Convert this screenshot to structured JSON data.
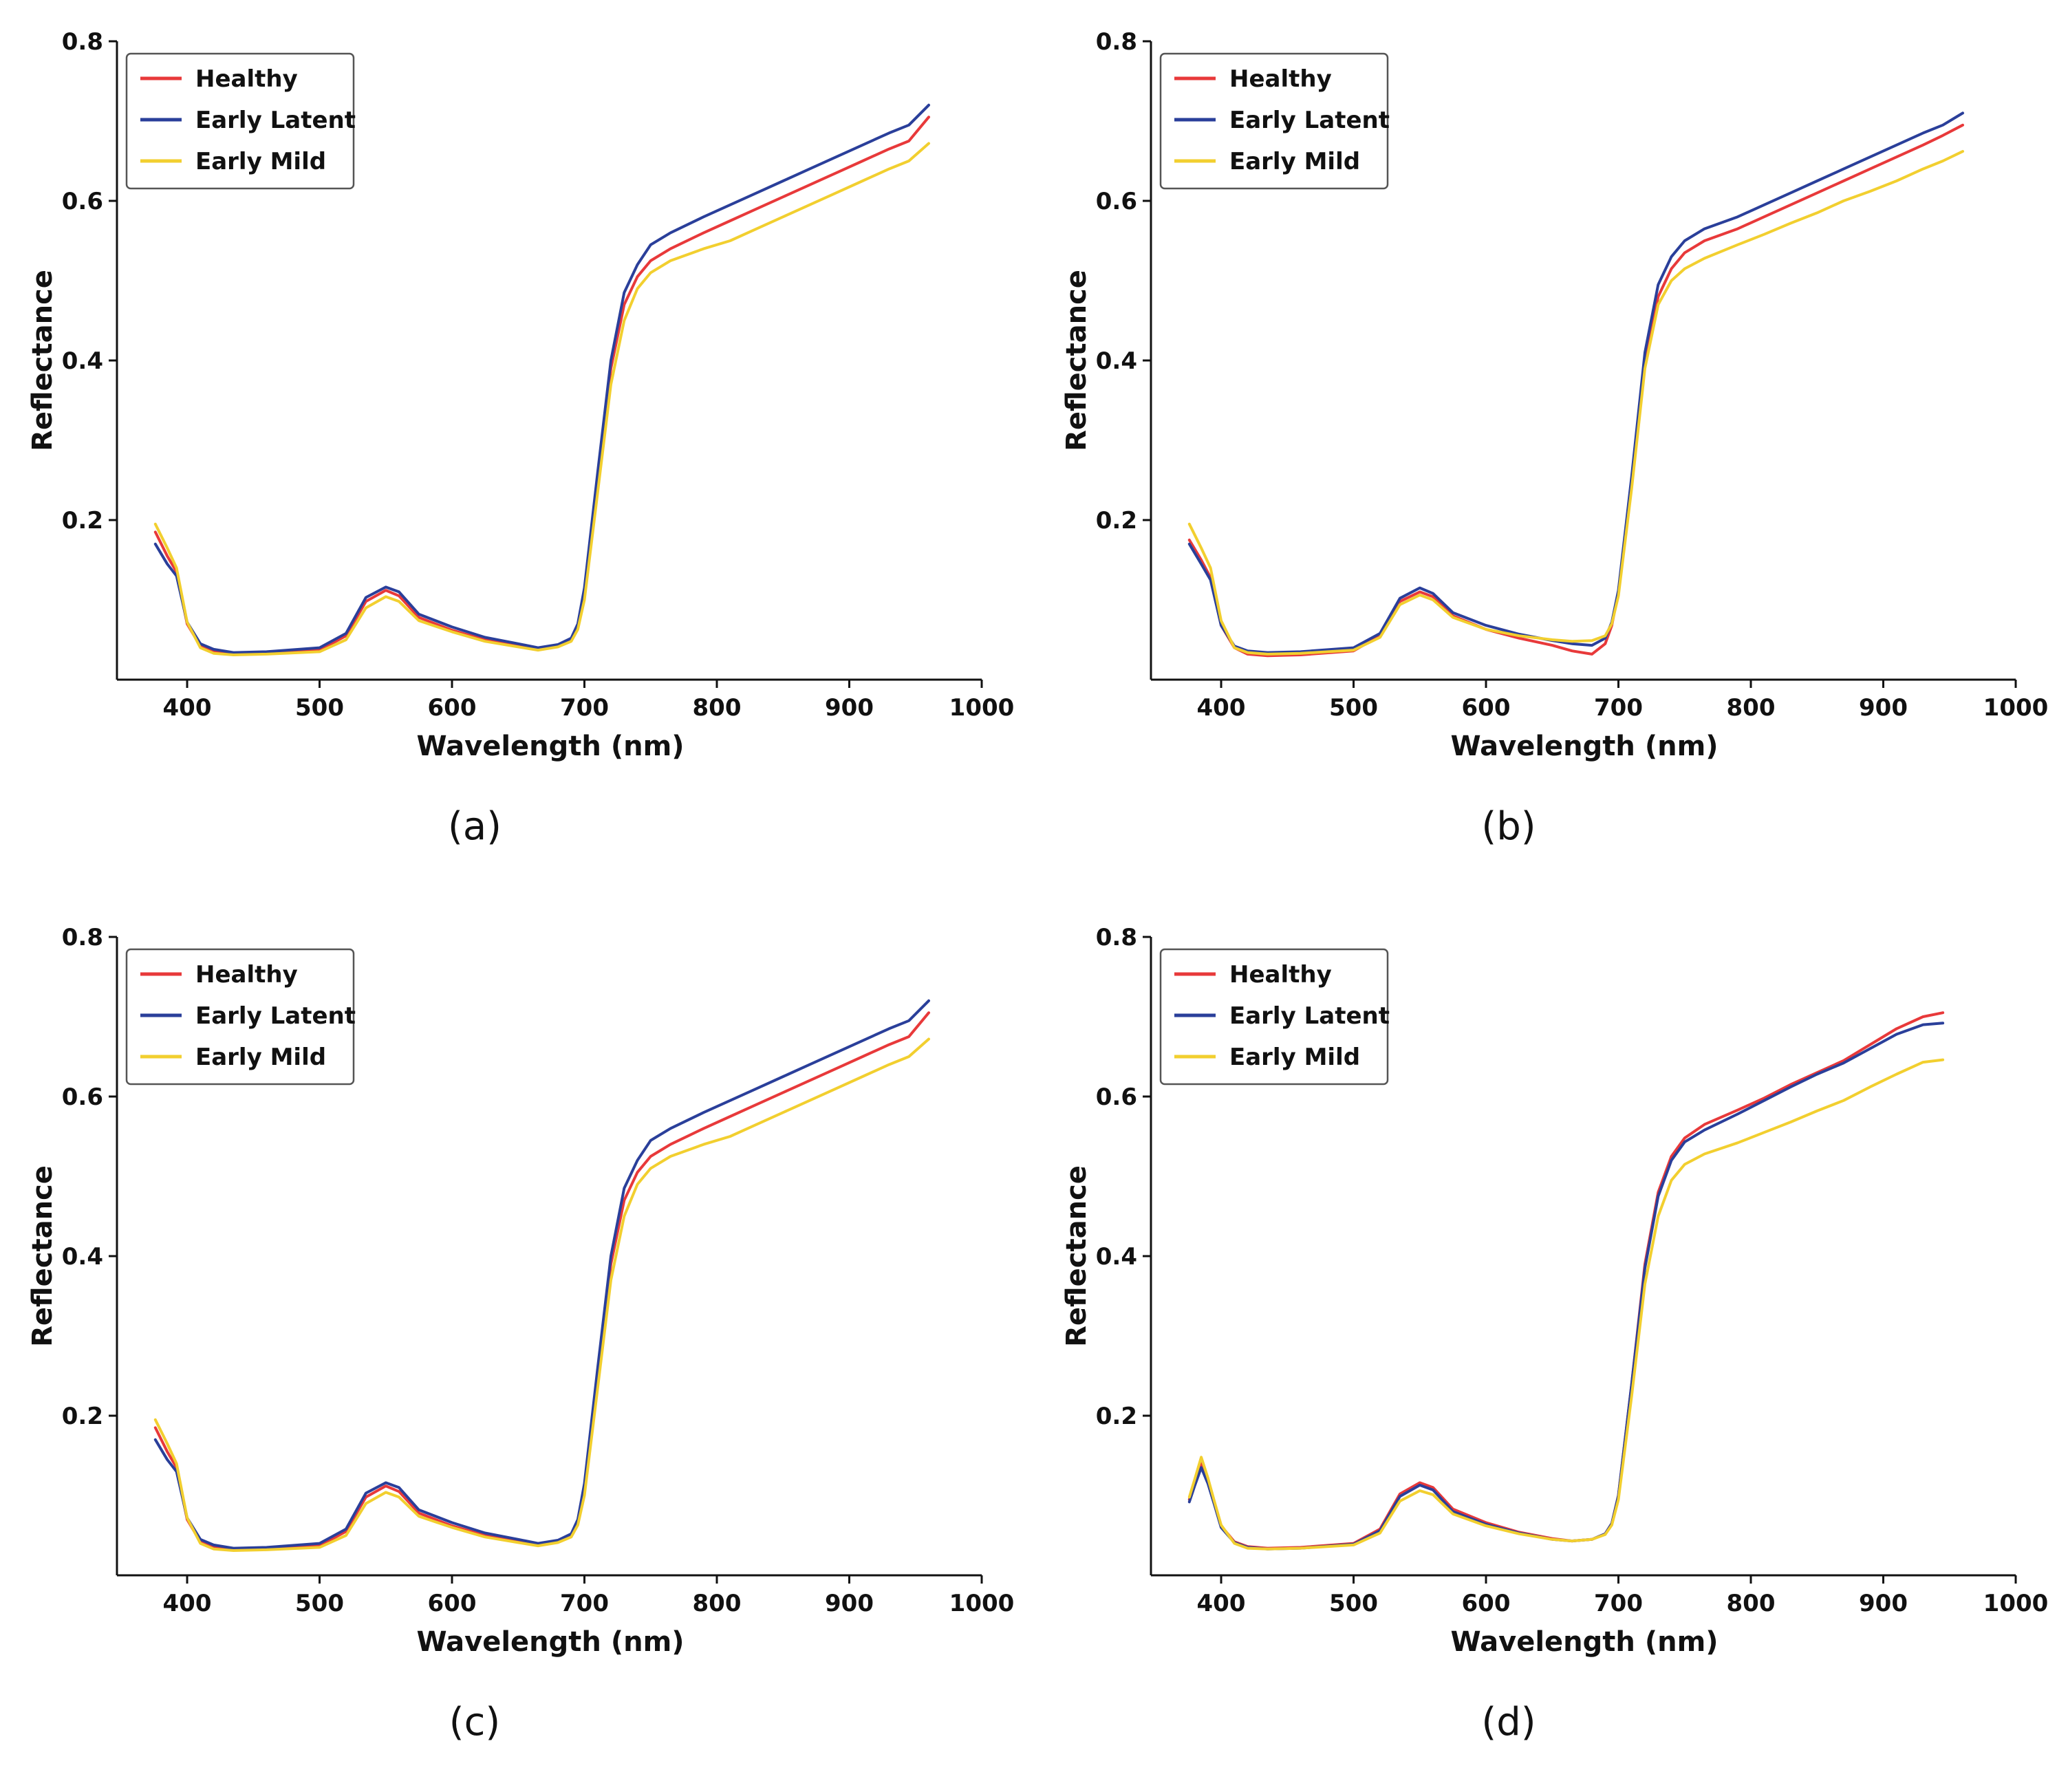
{
  "colors": {
    "healthy": "#e8393a",
    "early_latent": "#2a3f9a",
    "early_mild": "#f2cf2f"
  },
  "chart_data": [
    {
      "panel_label": "(a)",
      "type": "line",
      "title": "",
      "xlabel": "Wavelength (nm)",
      "ylabel": "Reflectance",
      "xlim": [
        347,
        1000
      ],
      "ylim": [
        0,
        0.8
      ],
      "xticks": [
        400,
        500,
        600,
        700,
        800,
        900,
        1000
      ],
      "yticks": [
        0.2,
        0.4,
        0.6,
        0.8
      ],
      "ytick_labels": [
        "0.2",
        "0.4",
        "0.6",
        "0.8"
      ],
      "legend": "top-left",
      "x": [
        376,
        385,
        392,
        400,
        410,
        420,
        435,
        460,
        500,
        520,
        535,
        550,
        560,
        575,
        600,
        625,
        650,
        665,
        680,
        690,
        695,
        700,
        710,
        720,
        730,
        740,
        750,
        765,
        790,
        810,
        830,
        850,
        870,
        890,
        910,
        930,
        945,
        960
      ],
      "series": [
        {
          "name": "Healthy",
          "color_key": "healthy",
          "values": [
            0.185,
            0.155,
            0.135,
            0.07,
            0.042,
            0.035,
            0.032,
            0.033,
            0.037,
            0.055,
            0.098,
            0.112,
            0.105,
            0.078,
            0.062,
            0.05,
            0.043,
            0.038,
            0.042,
            0.05,
            0.068,
            0.11,
            0.25,
            0.39,
            0.47,
            0.505,
            0.525,
            0.54,
            0.56,
            0.575,
            0.59,
            0.605,
            0.62,
            0.635,
            0.65,
            0.665,
            0.675,
            0.705
          ]
        },
        {
          "name": "Early Latent",
          "color_key": "early_latent",
          "values": [
            0.17,
            0.145,
            0.13,
            0.072,
            0.045,
            0.038,
            0.034,
            0.035,
            0.04,
            0.058,
            0.103,
            0.116,
            0.11,
            0.082,
            0.066,
            0.053,
            0.045,
            0.04,
            0.044,
            0.052,
            0.07,
            0.115,
            0.26,
            0.4,
            0.485,
            0.52,
            0.545,
            0.56,
            0.58,
            0.595,
            0.61,
            0.625,
            0.64,
            0.655,
            0.67,
            0.685,
            0.695,
            0.72
          ]
        },
        {
          "name": "Early Mild",
          "color_key": "early_mild",
          "values": [
            0.195,
            0.165,
            0.14,
            0.072,
            0.04,
            0.033,
            0.031,
            0.032,
            0.035,
            0.05,
            0.09,
            0.104,
            0.098,
            0.074,
            0.06,
            0.048,
            0.041,
            0.037,
            0.041,
            0.048,
            0.063,
            0.1,
            0.235,
            0.37,
            0.45,
            0.49,
            0.51,
            0.525,
            0.54,
            0.55,
            0.565,
            0.58,
            0.595,
            0.61,
            0.625,
            0.64,
            0.65,
            0.672
          ]
        }
      ]
    },
    {
      "panel_label": "(b)",
      "type": "line",
      "title": "",
      "xlabel": "Wavelength (nm)",
      "ylabel": "Reflectance",
      "xlim": [
        347,
        1000
      ],
      "ylim": [
        0,
        0.8
      ],
      "xticks": [
        400,
        500,
        600,
        700,
        800,
        900,
        1000
      ],
      "yticks": [
        0.2,
        0.4,
        0.6,
        0.8
      ],
      "ytick_labels": [
        "0.2",
        "0.4",
        "0.6",
        "0.8"
      ],
      "legend": "top-left",
      "x": [
        376,
        385,
        392,
        400,
        410,
        420,
        435,
        460,
        500,
        520,
        535,
        550,
        560,
        575,
        600,
        625,
        650,
        665,
        680,
        690,
        695,
        700,
        710,
        720,
        730,
        740,
        750,
        765,
        790,
        810,
        830,
        850,
        870,
        890,
        910,
        930,
        945,
        960
      ],
      "series": [
        {
          "name": "Healthy",
          "color_key": "healthy",
          "values": [
            0.175,
            0.15,
            0.128,
            0.068,
            0.04,
            0.032,
            0.03,
            0.031,
            0.036,
            0.055,
            0.098,
            0.11,
            0.104,
            0.08,
            0.063,
            0.052,
            0.043,
            0.036,
            0.032,
            0.045,
            0.068,
            0.11,
            0.25,
            0.4,
            0.48,
            0.515,
            0.535,
            0.55,
            0.565,
            0.58,
            0.595,
            0.61,
            0.625,
            0.64,
            0.655,
            0.67,
            0.682,
            0.695
          ]
        },
        {
          "name": "Early Latent",
          "color_key": "early_latent",
          "values": [
            0.17,
            0.145,
            0.125,
            0.068,
            0.042,
            0.036,
            0.034,
            0.035,
            0.04,
            0.058,
            0.102,
            0.115,
            0.108,
            0.084,
            0.068,
            0.057,
            0.049,
            0.045,
            0.043,
            0.052,
            0.072,
            0.112,
            0.255,
            0.41,
            0.495,
            0.53,
            0.55,
            0.565,
            0.58,
            0.595,
            0.61,
            0.625,
            0.64,
            0.655,
            0.67,
            0.685,
            0.695,
            0.71
          ]
        },
        {
          "name": "Early Mild",
          "color_key": "early_mild",
          "values": [
            0.195,
            0.165,
            0.14,
            0.074,
            0.04,
            0.034,
            0.032,
            0.033,
            0.037,
            0.053,
            0.094,
            0.106,
            0.1,
            0.078,
            0.063,
            0.055,
            0.05,
            0.048,
            0.049,
            0.055,
            0.07,
            0.105,
            0.24,
            0.39,
            0.47,
            0.5,
            0.515,
            0.528,
            0.545,
            0.558,
            0.572,
            0.585,
            0.6,
            0.612,
            0.625,
            0.64,
            0.65,
            0.662
          ]
        }
      ]
    },
    {
      "panel_label": "(c)",
      "type": "line",
      "title": "",
      "xlabel": "Wavelength (nm)",
      "ylabel": "Reflectance",
      "xlim": [
        347,
        1000
      ],
      "ylim": [
        0,
        0.8
      ],
      "xticks": [
        400,
        500,
        600,
        700,
        800,
        900,
        1000
      ],
      "yticks": [
        0.2,
        0.4,
        0.6,
        0.8
      ],
      "ytick_labels": [
        "0.2",
        "0.4",
        "0.6",
        "0.8"
      ],
      "legend": "top-left",
      "x": [
        376,
        385,
        392,
        400,
        410,
        420,
        435,
        460,
        500,
        520,
        535,
        550,
        560,
        575,
        600,
        625,
        650,
        665,
        680,
        690,
        695,
        700,
        710,
        720,
        730,
        740,
        750,
        765,
        790,
        810,
        830,
        850,
        870,
        890,
        910,
        930,
        945,
        960
      ],
      "series": [
        {
          "name": "Healthy",
          "color_key": "healthy",
          "values": [
            0.185,
            0.155,
            0.135,
            0.07,
            0.042,
            0.035,
            0.032,
            0.033,
            0.037,
            0.055,
            0.098,
            0.112,
            0.105,
            0.078,
            0.062,
            0.05,
            0.043,
            0.038,
            0.042,
            0.05,
            0.068,
            0.11,
            0.25,
            0.39,
            0.47,
            0.505,
            0.525,
            0.54,
            0.56,
            0.575,
            0.59,
            0.605,
            0.62,
            0.635,
            0.65,
            0.665,
            0.675,
            0.705
          ]
        },
        {
          "name": "Early Latent",
          "color_key": "early_latent",
          "values": [
            0.17,
            0.145,
            0.13,
            0.072,
            0.045,
            0.038,
            0.034,
            0.035,
            0.04,
            0.058,
            0.103,
            0.116,
            0.11,
            0.082,
            0.066,
            0.053,
            0.045,
            0.04,
            0.044,
            0.052,
            0.07,
            0.115,
            0.26,
            0.4,
            0.485,
            0.52,
            0.545,
            0.56,
            0.58,
            0.595,
            0.61,
            0.625,
            0.64,
            0.655,
            0.67,
            0.685,
            0.695,
            0.72
          ]
        },
        {
          "name": "Early Mild",
          "color_key": "early_mild",
          "values": [
            0.195,
            0.165,
            0.14,
            0.072,
            0.04,
            0.033,
            0.031,
            0.032,
            0.035,
            0.05,
            0.09,
            0.104,
            0.098,
            0.074,
            0.06,
            0.048,
            0.041,
            0.037,
            0.041,
            0.048,
            0.063,
            0.1,
            0.235,
            0.37,
            0.45,
            0.49,
            0.51,
            0.525,
            0.54,
            0.55,
            0.565,
            0.58,
            0.595,
            0.61,
            0.625,
            0.64,
            0.65,
            0.672
          ]
        }
      ]
    },
    {
      "panel_label": "(d)",
      "type": "line",
      "title": "",
      "xlabel": "Wavelength (nm)",
      "ylabel": "Reflectance",
      "xlim": [
        347,
        1000
      ],
      "ylim": [
        0,
        0.8
      ],
      "xticks": [
        400,
        500,
        600,
        700,
        800,
        900,
        1000
      ],
      "yticks": [
        0.2,
        0.4,
        0.6,
        0.8
      ],
      "ytick_labels": [
        "0.2",
        "0.4",
        "0.6",
        "0.8"
      ],
      "legend": "top-left",
      "x": [
        376,
        380,
        385,
        390,
        395,
        400,
        410,
        420,
        435,
        460,
        500,
        520,
        535,
        550,
        560,
        575,
        600,
        625,
        650,
        665,
        680,
        690,
        695,
        700,
        710,
        720,
        730,
        740,
        750,
        765,
        790,
        810,
        830,
        850,
        870,
        890,
        910,
        930,
        945
      ],
      "series": [
        {
          "name": "Healthy",
          "color_key": "healthy",
          "values": [
            0.095,
            0.115,
            0.14,
            0.118,
            0.09,
            0.062,
            0.042,
            0.036,
            0.034,
            0.035,
            0.04,
            0.058,
            0.102,
            0.116,
            0.11,
            0.083,
            0.066,
            0.054,
            0.046,
            0.043,
            0.045,
            0.052,
            0.065,
            0.1,
            0.24,
            0.39,
            0.48,
            0.525,
            0.548,
            0.565,
            0.583,
            0.598,
            0.615,
            0.63,
            0.645,
            0.665,
            0.685,
            0.7,
            0.705
          ]
        },
        {
          "name": "Early Latent",
          "color_key": "early_latent",
          "values": [
            0.092,
            0.112,
            0.135,
            0.115,
            0.088,
            0.06,
            0.041,
            0.035,
            0.033,
            0.034,
            0.039,
            0.056,
            0.099,
            0.113,
            0.107,
            0.08,
            0.064,
            0.053,
            0.045,
            0.043,
            0.045,
            0.052,
            0.065,
            0.1,
            0.24,
            0.385,
            0.475,
            0.52,
            0.543,
            0.558,
            0.578,
            0.595,
            0.612,
            0.628,
            0.642,
            0.66,
            0.678,
            0.69,
            0.692
          ]
        },
        {
          "name": "Early Mild",
          "color_key": "early_mild",
          "values": [
            0.098,
            0.12,
            0.148,
            0.122,
            0.092,
            0.063,
            0.04,
            0.034,
            0.033,
            0.034,
            0.038,
            0.053,
            0.093,
            0.106,
            0.101,
            0.077,
            0.062,
            0.052,
            0.045,
            0.043,
            0.045,
            0.051,
            0.063,
            0.095,
            0.225,
            0.365,
            0.45,
            0.495,
            0.515,
            0.528,
            0.542,
            0.555,
            0.568,
            0.582,
            0.595,
            0.612,
            0.628,
            0.643,
            0.646
          ]
        }
      ]
    }
  ]
}
